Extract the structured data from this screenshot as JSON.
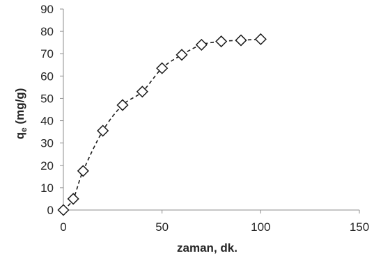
{
  "chart_data": {
    "type": "scatter",
    "xlabel": "zaman, dk.",
    "ylabel_main": "q",
    "ylabel_sub": "e",
    "ylabel_unit": " (mg/g)",
    "xlim": [
      0,
      150
    ],
    "ylim": [
      0,
      90
    ],
    "x_ticks": [
      "0",
      "50",
      "100",
      "150"
    ],
    "y_ticks": [
      "0",
      "10",
      "20",
      "30",
      "40",
      "50",
      "60",
      "70",
      "80",
      "90"
    ],
    "grid": false,
    "line_style": "dashed",
    "marker": "open-diamond",
    "series": [
      {
        "x": [
          0,
          5,
          10,
          20,
          30,
          40,
          50,
          60,
          70,
          80,
          90,
          100
        ],
        "y": [
          0,
          5,
          17.5,
          35.5,
          47,
          53,
          63.5,
          69.5,
          74,
          75.5,
          76,
          76.5
        ]
      }
    ]
  }
}
